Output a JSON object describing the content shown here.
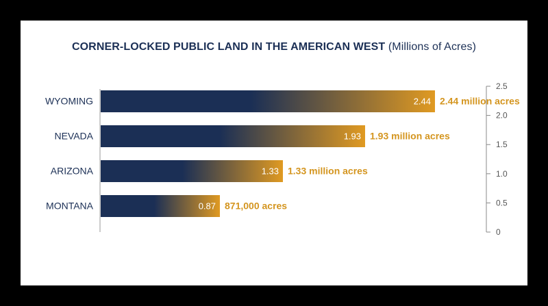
{
  "chart_data": {
    "type": "bar",
    "orientation": "horizontal",
    "title": "CORNER-LOCKED PUBLIC LAND IN THE AMERICAN WEST",
    "subtitle": "(Millions of Acres)",
    "categories": [
      "WYOMING",
      "NEVADA",
      "ARIZONA",
      "MONTANA"
    ],
    "values": [
      2.44,
      1.93,
      1.33,
      0.87
    ],
    "value_labels": [
      "2.44",
      "1.93",
      "1.33",
      "0.87"
    ],
    "annotations": [
      "2.44 million acres",
      "1.93 million acres",
      "1.33 million acres",
      "871,000 acres"
    ],
    "axis_ticks": [
      "0",
      "0.5",
      "1.0",
      "1.5",
      "2.0",
      "2.5"
    ],
    "tick_values": [
      0,
      0.5,
      1.0,
      1.5,
      2.0,
      2.5
    ],
    "xlim": [
      0,
      2.5
    ],
    "axis_side": "right",
    "grid": false,
    "colors": {
      "bar_start": "#1b2f55",
      "bar_end": "#e09a22",
      "annotation": "#d4951f",
      "text": "#1b2f55",
      "background": "#000000",
      "card": "#ffffff"
    }
  }
}
